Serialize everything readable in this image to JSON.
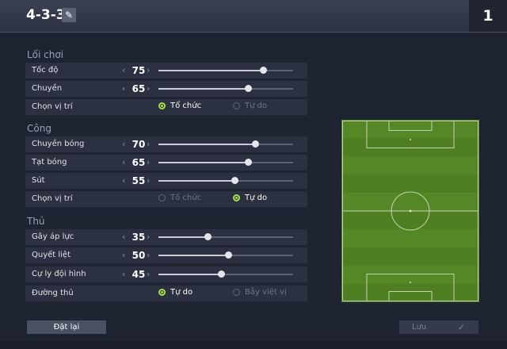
{
  "header": {
    "formation": "4-3-3",
    "page": "1"
  },
  "sections": {
    "style": {
      "title": "Lối chơi"
    },
    "attack": {
      "title": "Công"
    },
    "defense": {
      "title": "Thủ"
    }
  },
  "rows": {
    "speed": {
      "label": "Tốc độ",
      "value": "75",
      "level": 0.78
    },
    "passing": {
      "label": "Chuyền",
      "value": "65",
      "level": 0.67
    },
    "style_position": {
      "label": "Chọn vị trí",
      "options": [
        "Tổ chức",
        "Tự do"
      ],
      "selected": "Tổ chức"
    },
    "att_passing": {
      "label": "Chuyền bóng",
      "value": "70",
      "level": 0.72
    },
    "crossing": {
      "label": "Tạt bóng",
      "value": "65",
      "level": 0.67
    },
    "shooting": {
      "label": "Sút",
      "value": "55",
      "level": 0.57
    },
    "att_position": {
      "label": "Chọn vị trí",
      "options": [
        "Tổ chức",
        "Tự do"
      ],
      "selected": "Tự do"
    },
    "pressure": {
      "label": "Gây áp lực",
      "value": "35",
      "level": 0.37
    },
    "aggression": {
      "label": "Quyết liệt",
      "value": "50",
      "level": 0.52
    },
    "width": {
      "label": "Cự ly đội hình",
      "value": "45",
      "level": 0.47
    },
    "def_line": {
      "label": "Đường thủ",
      "options": [
        "Tự do",
        "Bẫy việt vị"
      ],
      "selected": "Tự do"
    }
  },
  "buttons": {
    "reset": "Đặt lại",
    "save": "Lưu"
  },
  "colors": {
    "accent": "#a6e14b",
    "pitch": "#4f7f22",
    "background": "#1e2432"
  },
  "icons": {
    "edit": "edit-icon",
    "check": "check-icon"
  }
}
